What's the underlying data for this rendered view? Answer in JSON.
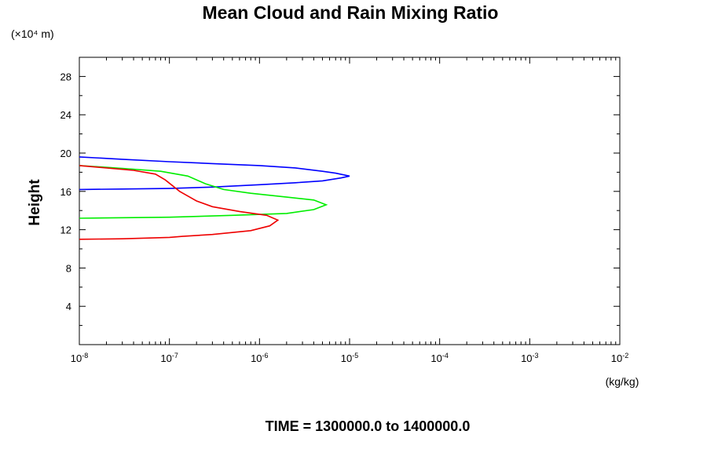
{
  "chart_data": {
    "type": "line",
    "title": "Mean Cloud and Rain Mixing Ratio",
    "ylabel": "Height",
    "y_scale_label": "(×10⁴ m)",
    "xlabel": "(kg/kg)",
    "footer": "TIME = 1300000.0 to 1400000.0",
    "x_scale": "log",
    "xlim": [
      1e-08,
      0.01
    ],
    "ylim": [
      0,
      30000
    ],
    "x_tick_labels": [
      {
        "base": "10",
        "exp": "-8",
        "value": 1e-08
      },
      {
        "base": "10",
        "exp": "-7",
        "value": 1e-07
      },
      {
        "base": "10",
        "exp": "-6",
        "value": 1e-06
      },
      {
        "base": "10",
        "exp": "-5",
        "value": 1e-05
      },
      {
        "base": "10",
        "exp": "-4",
        "value": 0.0001
      },
      {
        "base": "10",
        "exp": "-3",
        "value": 0.001
      },
      {
        "base": "10",
        "exp": "-2",
        "value": 0.01
      }
    ],
    "y_ticks": [
      {
        "label": "4",
        "value": 4000
      },
      {
        "label": "8",
        "value": 8000
      },
      {
        "label": "12",
        "value": 12000
      },
      {
        "label": "16",
        "value": 16000
      },
      {
        "label": "20",
        "value": 20000
      },
      {
        "label": "24",
        "value": 24000
      },
      {
        "label": "28",
        "value": 28000
      }
    ],
    "grid": false,
    "legend": "none",
    "series": [
      {
        "color": "#0000ff",
        "points": [
          [
            1e-08,
            16200
          ],
          [
            3e-08,
            16250
          ],
          [
            1e-07,
            16300
          ],
          [
            3e-07,
            16450
          ],
          [
            1e-06,
            16700
          ],
          [
            2.5e-06,
            16900
          ],
          [
            5e-06,
            17100
          ],
          [
            8e-06,
            17400
          ],
          [
            1e-05,
            17600
          ],
          [
            7e-06,
            17900
          ],
          [
            5e-06,
            18100
          ],
          [
            2.5e-06,
            18450
          ],
          [
            1e-06,
            18700
          ],
          [
            3e-07,
            18900
          ],
          [
            1e-07,
            19100
          ],
          [
            3e-08,
            19350
          ],
          [
            1e-08,
            19600
          ]
        ]
      },
      {
        "color": "#00ee00",
        "points": [
          [
            1e-08,
            13200
          ],
          [
            1e-07,
            13300
          ],
          [
            5e-07,
            13500
          ],
          [
            2e-06,
            13700
          ],
          [
            4e-06,
            14100
          ],
          [
            5.5e-06,
            14600
          ],
          [
            4e-06,
            15100
          ],
          [
            2e-06,
            15400
          ],
          [
            8e-07,
            15800
          ],
          [
            4e-07,
            16200
          ],
          [
            2.5e-07,
            16800
          ],
          [
            1.6e-07,
            17600
          ],
          [
            8e-08,
            18100
          ],
          [
            3e-08,
            18400
          ],
          [
            1e-08,
            18700
          ]
        ]
      },
      {
        "color": "#ee0000",
        "points": [
          [
            1e-08,
            11000
          ],
          [
            3e-08,
            11050
          ],
          [
            1e-07,
            11200
          ],
          [
            1.4e-07,
            11300
          ],
          [
            3e-07,
            11500
          ],
          [
            8e-07,
            11900
          ],
          [
            1.3e-06,
            12400
          ],
          [
            1.6e-06,
            13000
          ],
          [
            1.2e-06,
            13500
          ],
          [
            6e-07,
            13900
          ],
          [
            3e-07,
            14400
          ],
          [
            2e-07,
            15000
          ],
          [
            1.3e-07,
            16000
          ],
          [
            9e-08,
            17200
          ],
          [
            7e-08,
            17800
          ],
          [
            4e-08,
            18200
          ],
          [
            1e-08,
            18700
          ]
        ]
      }
    ]
  }
}
